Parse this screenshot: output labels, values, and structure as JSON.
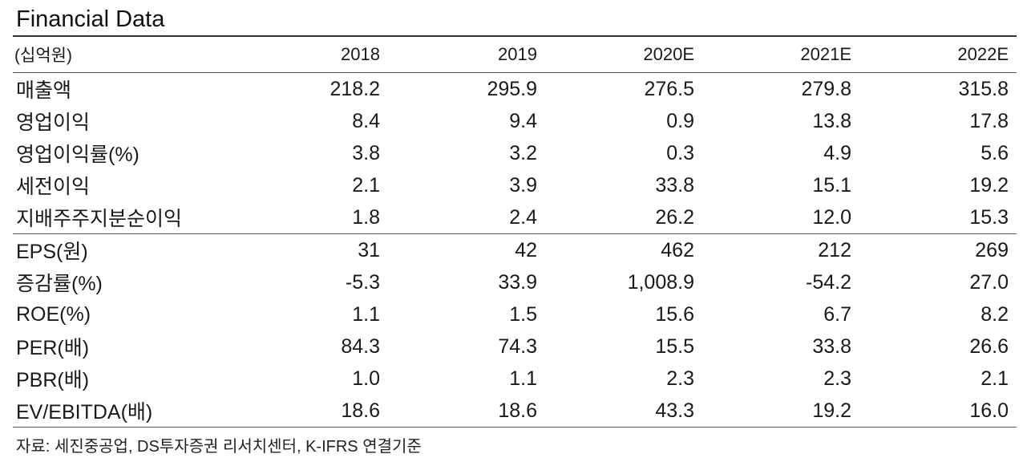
{
  "title": "Financial Data",
  "table": {
    "unit": "(십억원)",
    "columns": [
      "2018",
      "2019",
      "2020E",
      "2021E",
      "2022E"
    ],
    "rows": [
      {
        "label": "매출액",
        "values": [
          "218.2",
          "295.9",
          "276.5",
          "279.8",
          "315.8"
        ]
      },
      {
        "label": "영업이익",
        "values": [
          "8.4",
          "9.4",
          "0.9",
          "13.8",
          "17.8"
        ]
      },
      {
        "label": "영업이익률(%)",
        "values": [
          "3.8",
          "3.2",
          "0.3",
          "4.9",
          "5.6"
        ]
      },
      {
        "label": "세전이익",
        "values": [
          "2.1",
          "3.9",
          "33.8",
          "15.1",
          "19.2"
        ]
      },
      {
        "label": "지배주주지분순이익",
        "values": [
          "1.8",
          "2.4",
          "26.2",
          "12.0",
          "15.3"
        ]
      },
      {
        "label": "EPS(원)",
        "values": [
          "31",
          "42",
          "462",
          "212",
          "269"
        ]
      },
      {
        "label": "증감률(%)",
        "values": [
          "-5.3",
          "33.9",
          "1,008.9",
          "-54.2",
          "27.0"
        ]
      },
      {
        "label": "ROE(%)",
        "values": [
          "1.1",
          "1.5",
          "15.6",
          "6.7",
          "8.2"
        ]
      },
      {
        "label": "PER(배)",
        "values": [
          "84.3",
          "74.3",
          "15.5",
          "33.8",
          "26.6"
        ]
      },
      {
        "label": "PBR(배)",
        "values": [
          "1.0",
          "1.1",
          "2.3",
          "2.3",
          "2.1"
        ]
      },
      {
        "label": "EV/EBITDA(배)",
        "values": [
          "18.6",
          "18.6",
          "43.3",
          "19.2",
          "16.0"
        ]
      }
    ]
  },
  "source": "자료: 세진중공업, DS투자증권 리서치센터, K-IFRS 연결기준"
}
